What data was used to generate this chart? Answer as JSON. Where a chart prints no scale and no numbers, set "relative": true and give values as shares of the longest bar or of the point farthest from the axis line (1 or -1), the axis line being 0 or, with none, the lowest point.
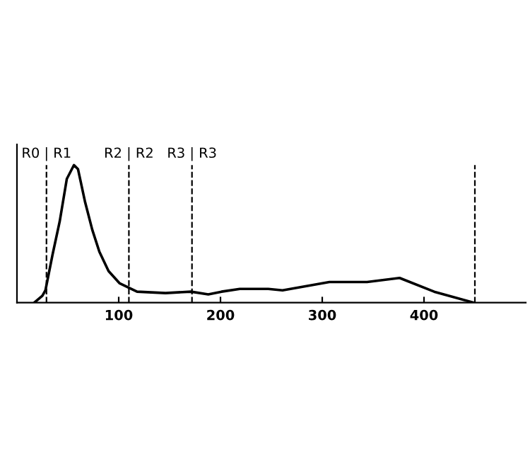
{
  "chart_data": {
    "type": "line",
    "relative": true,
    "xlim": [
      0,
      500
    ],
    "xticks": [
      100,
      200,
      300,
      400
    ],
    "tick_labels": "x",
    "grid": false,
    "legend": false,
    "marker": "none",
    "line_style": "solid",
    "series": [
      {
        "color": "#000000",
        "x": [
          17,
          25,
          28,
          35,
          42,
          49,
          56,
          60,
          67,
          74,
          81,
          90,
          101,
          118,
          146,
          171,
          188,
          201,
          219,
          247,
          261,
          307,
          344,
          376,
          410,
          449
        ],
        "values": [
          0,
          0.05,
          0.09,
          0.35,
          0.59,
          0.9,
          1.0,
          0.97,
          0.73,
          0.53,
          0.37,
          0.23,
          0.14,
          0.08,
          0.07,
          0.08,
          0.06,
          0.08,
          0.1,
          0.1,
          0.09,
          0.15,
          0.15,
          0.18,
          0.08,
          0
        ]
      }
    ],
    "ref_lines": [
      {
        "axis": "x",
        "value": 29,
        "label": "R0 | R1",
        "line_style": "dashed",
        "color": "#000000"
      },
      {
        "axis": "x",
        "value": 110,
        "label": "R2 | R2",
        "line_style": "dashed",
        "color": "#000000"
      },
      {
        "axis": "x",
        "value": 172,
        "label": "R3 | R3",
        "line_style": "dashed",
        "color": "#000000"
      },
      {
        "axis": "x",
        "value": 450,
        "label": null,
        "line_style": "dashed",
        "color": "#000000"
      }
    ]
  }
}
